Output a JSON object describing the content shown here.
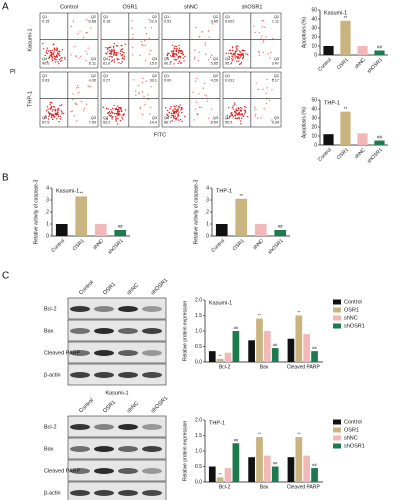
{
  "panel_labels": [
    "A",
    "B",
    "C"
  ],
  "flow": {
    "columns": [
      "Control",
      "OSR1",
      "shNC",
      "shOSR1"
    ],
    "rows": [
      "Kasumi-1",
      "THP-1"
    ],
    "y_label": "PI",
    "x_label": "FITC",
    "quadrant_names": [
      "Q1",
      "Q2",
      "Q3",
      "Q4"
    ],
    "plots": [
      [
        [
          "0.15",
          "3.88",
          "6.11",
          "90.0"
        ],
        [
          "0.16",
          "22.9",
          "15.0",
          "61.8"
        ],
        [
          "0.51",
          "3.85",
          "5.85",
          "90.2"
        ],
        [
          "0.022",
          "1.11",
          "3.47",
          "95.4"
        ]
      ],
      [
        [
          "0.63",
          "4.30",
          "7.59",
          "87.5"
        ],
        [
          "0.27",
          "33.1",
          "14.4",
          "52.2"
        ],
        [
          "0.00",
          "4.29",
          "8.54",
          "86.7"
        ],
        [
          "0.011",
          "1.17",
          "3.34",
          "95.5"
        ]
      ]
    ]
  },
  "blots": [
    {
      "cell": "Kasumi-1",
      "lanes": [
        "Control",
        "OSR1",
        "shNC",
        "shOSR1"
      ],
      "proteins": [
        "Bcl-2",
        "Bax",
        "Cleaved PARP",
        "β-actin"
      ]
    },
    {
      "cell": "THP-1",
      "lanes": [
        "Control",
        "OSR1",
        "shNC",
        "shOSR1"
      ],
      "proteins": [
        "Bcl-2",
        "Bax",
        "Cleaved PARP",
        "β-actin"
      ]
    }
  ],
  "chart_data": [
    {
      "type": "bar",
      "title": "Kasumi-1",
      "y_label": "Apoptosis (%)",
      "categories": [
        "Control",
        "OSR1",
        "shNC",
        "shOSR1"
      ],
      "values": [
        10,
        38,
        10,
        5
      ],
      "colors": [
        "#111111",
        "#c9b37e",
        "#f2b8b8",
        "#1d7a4e"
      ],
      "annotations": [
        null,
        "**",
        null,
        "##"
      ],
      "ylim": [
        0,
        50
      ],
      "yticks": [
        0,
        10,
        20,
        30,
        40,
        50
      ]
    },
    {
      "type": "bar",
      "title": "THP-1",
      "y_label": "Apoptosis (%)",
      "categories": [
        "Control",
        "OSR1",
        "shNC",
        "shOSR1"
      ],
      "values": [
        12,
        37,
        13,
        5
      ],
      "colors": [
        "#111111",
        "#c9b37e",
        "#f2b8b8",
        "#1d7a4e"
      ],
      "annotations": [
        null,
        "**",
        null,
        "##"
      ],
      "ylim": [
        0,
        50
      ],
      "yticks": [
        0,
        10,
        20,
        30,
        40,
        50
      ]
    },
    {
      "type": "bar",
      "title": "Kasumi-1",
      "y_label": "Relative activity of caspase-3",
      "categories": [
        "Control",
        "OSR1",
        "shNC",
        "shOSR1"
      ],
      "values": [
        1.0,
        3.3,
        1.0,
        0.5
      ],
      "colors": [
        "#111111",
        "#c9b37e",
        "#f2b8b8",
        "#1d7a4e"
      ],
      "annotations": [
        null,
        "**",
        null,
        "##"
      ],
      "ylim": [
        0,
        4
      ],
      "yticks": [
        0,
        1,
        2,
        3,
        4
      ]
    },
    {
      "type": "bar",
      "title": "THP-1",
      "y_label": "Relative activity of caspase-3",
      "categories": [
        "Control",
        "OSR1",
        "shNC",
        "shOSR1"
      ],
      "values": [
        1.0,
        3.1,
        1.0,
        0.5
      ],
      "colors": [
        "#111111",
        "#c9b37e",
        "#f2b8b8",
        "#1d7a4e"
      ],
      "annotations": [
        null,
        "**",
        null,
        "##"
      ],
      "ylim": [
        0,
        4
      ],
      "yticks": [
        0,
        1,
        2,
        3,
        4
      ]
    },
    {
      "type": "grouped-bar",
      "title": "Kasumi-1",
      "y_label": "Relative protein expression",
      "categories": [
        "Bcl-2",
        "Bax",
        "Cleaved PARP"
      ],
      "series": [
        {
          "name": "Control",
          "color": "#111111",
          "values": [
            0.35,
            0.7,
            0.75
          ],
          "annotations": [
            null,
            null,
            null
          ]
        },
        {
          "name": "OSR1",
          "color": "#c9b37e",
          "values": [
            0.1,
            1.4,
            1.5
          ],
          "annotations": [
            "**",
            "**",
            "**"
          ]
        },
        {
          "name": "shNC",
          "color": "#f2b8b8",
          "values": [
            0.3,
            1.0,
            0.9
          ],
          "annotations": [
            null,
            null,
            null
          ]
        },
        {
          "name": "shOSR1",
          "color": "#1d7a4e",
          "values": [
            1.0,
            0.45,
            0.35
          ],
          "annotations": [
            "##",
            "##",
            "##"
          ]
        }
      ],
      "ylim": [
        0,
        2
      ],
      "yticks": [
        {
          "value": 0,
          "label": "0.0"
        },
        0.5,
        {
          "value": 1,
          "label": "1.0"
        },
        1.5,
        {
          "value": 2,
          "label": "2.0"
        }
      ]
    },
    {
      "type": "grouped-bar",
      "title": "THP-1",
      "y_label": "Relative protein expression",
      "categories": [
        "Bcl-2",
        "Bax",
        "Cleaved PARP"
      ],
      "series": [
        {
          "name": "Control",
          "color": "#111111",
          "values": [
            0.5,
            0.8,
            0.8
          ],
          "annotations": [
            null,
            null,
            null
          ]
        },
        {
          "name": "OSR1",
          "color": "#c9b37e",
          "values": [
            0.15,
            1.45,
            1.45
          ],
          "annotations": [
            "**",
            "**",
            "**"
          ]
        },
        {
          "name": "shNC",
          "color": "#f2b8b8",
          "values": [
            0.45,
            0.85,
            0.85
          ],
          "annotations": [
            null,
            null,
            null
          ]
        },
        {
          "name": "shOSR1",
          "color": "#1d7a4e",
          "values": [
            1.25,
            0.5,
            0.45
          ],
          "annotations": [
            "##",
            "##",
            "##"
          ]
        }
      ],
      "ylim": [
        0,
        2
      ],
      "yticks": [
        {
          "value": 0,
          "label": "0.0"
        },
        0.5,
        {
          "value": 1,
          "label": "1.0"
        },
        1.5,
        {
          "value": 2,
          "label": "2.0"
        }
      ]
    }
  ]
}
